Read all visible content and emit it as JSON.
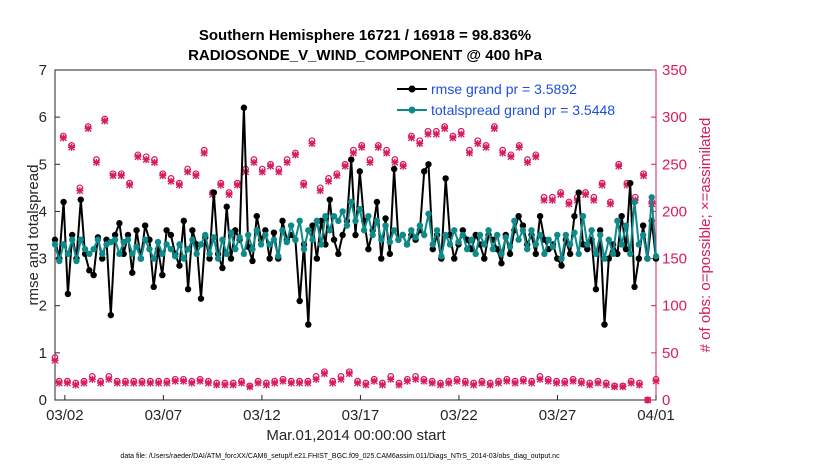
{
  "chart_data": {
    "type": "line",
    "title_line1": "Southern Hemisphere 16721 / 16918 = 98.836%",
    "title_line2": "RADIOSONDE_V_WIND_COMPONENT @ 400 hPa",
    "xlabel": "Mar.01,2014 00:00:00 start",
    "ylabel_left": "rmse and totalspread",
    "ylabel_right": "# of obs: o=possible; ×=assimilated",
    "footer": "data file: /Users/raeder/DAI/ATM_forcXX/CAM6_setup/f.e21.FHIST_BGC.f09_025.CAM6assim.011/Diags_NTrS_2014-03/obs_diag_output.nc",
    "xlim": [
      1.5,
      32.0
    ],
    "ylim_left": [
      0,
      7
    ],
    "ylim_right": [
      0,
      350
    ],
    "yticks_left": [
      "0",
      "1",
      "2",
      "3",
      "4",
      "5",
      "6",
      "7"
    ],
    "yticks_right": [
      "0",
      "50",
      "100",
      "150",
      "200",
      "250",
      "300",
      "350"
    ],
    "xticks": [
      {
        "x": 2,
        "label": "03/02"
      },
      {
        "x": 7,
        "label": "03/07"
      },
      {
        "x": 12,
        "label": "03/12"
      },
      {
        "x": 17,
        "label": "03/17"
      },
      {
        "x": 22,
        "label": "03/22"
      },
      {
        "x": 27,
        "label": "03/27"
      },
      {
        "x": 32,
        "label": "04/01"
      }
    ],
    "colors": {
      "rmse": "#000000",
      "spread": "#0f8a8a",
      "obs": "#d81b60",
      "legend_text": "#1f4fd8"
    },
    "series": [
      {
        "name": "rmse grand pr = 3.5892",
        "values": [
          3.4,
          3.0,
          4.2,
          2.25,
          3.5,
          3.0,
          4.25,
          3.1,
          2.75,
          2.65,
          3.45,
          3.0,
          3.4,
          1.8,
          3.5,
          3.75,
          3.1,
          3.5,
          2.7,
          3.6,
          3.0,
          3.7,
          3.4,
          2.4,
          3.2,
          2.65,
          3.6,
          3.5,
          3.1,
          2.85,
          3.8,
          2.35,
          3.6,
          3.3,
          2.15,
          3.45,
          3.0,
          4.4,
          3.1,
          2.8,
          4.1,
          3.0,
          3.6,
          3.4,
          6.2,
          3.25,
          2.95,
          3.9,
          3.4,
          3.6,
          3.0,
          3.55,
          3.0,
          3.8,
          3.4,
          3.5,
          3.4,
          2.1,
          3.3,
          1.6,
          3.7,
          3.0,
          3.8,
          3.3,
          4.25,
          3.4,
          3.1,
          3.5,
          3.8,
          5.1,
          3.5,
          4.85,
          3.8,
          3.2,
          3.6,
          4.2,
          3.0,
          3.85,
          3.1,
          4.9,
          3.4,
          3.5,
          3.3,
          3.5,
          3.4,
          3.6,
          4.85,
          5.0,
          3.2,
          3.5,
          3.0,
          4.7,
          3.5,
          3.0,
          3.3,
          3.6,
          3.4,
          3.2,
          3.5,
          3.3,
          3.0,
          3.5,
          3.4,
          3.2,
          2.9,
          3.5,
          3.1,
          3.6,
          3.9,
          3.7,
          3.3,
          3.5,
          3.1,
          3.9,
          3.4,
          3.2,
          3.3,
          3.0,
          2.85,
          3.4,
          3.1,
          3.9,
          4.4,
          3.3,
          3.2,
          3.4,
          2.35,
          3.6,
          1.6,
          3.0,
          3.3,
          3.1,
          3.9,
          3.2,
          4.6,
          2.4,
          3.0,
          3.7,
          3.0,
          3.8,
          3.0
        ]
      },
      {
        "name": "totalspread grand pr = 3.5448",
        "values": [
          3.3,
          2.95,
          3.3,
          3.1,
          3.4,
          2.95,
          3.4,
          3.2,
          3.1,
          3.2,
          3.4,
          3.1,
          3.3,
          3.35,
          3.4,
          3.1,
          3.35,
          3.4,
          3.1,
          3.25,
          3.0,
          3.4,
          3.2,
          3.0,
          3.35,
          3.1,
          3.3,
          3.2,
          3.05,
          3.3,
          3.0,
          3.2,
          3.4,
          3.1,
          3.3,
          3.5,
          3.1,
          3.45,
          3.0,
          3.4,
          3.1,
          3.55,
          3.2,
          3.45,
          3.1,
          3.5,
          3.2,
          3.6,
          3.3,
          3.5,
          3.3,
          3.4,
          3.05,
          3.6,
          3.35,
          3.7,
          3.4,
          3.8,
          3.2,
          3.6,
          3.4,
          3.8,
          3.3,
          3.9,
          3.6,
          3.9,
          3.8,
          4.0,
          3.7,
          4.2,
          3.8,
          4.05,
          3.6,
          3.9,
          3.5,
          3.8,
          3.4,
          3.7,
          3.35,
          3.6,
          3.4,
          3.5,
          3.3,
          3.6,
          3.45,
          3.7,
          3.5,
          3.95,
          3.3,
          3.6,
          3.05,
          3.5,
          3.3,
          3.6,
          3.35,
          3.5,
          3.2,
          3.4,
          3.1,
          3.5,
          3.3,
          3.6,
          3.2,
          3.5,
          3.1,
          3.45,
          3.25,
          3.8,
          3.4,
          3.6,
          3.2,
          3.6,
          3.3,
          3.5,
          3.1,
          3.4,
          3.25,
          3.5,
          3.0,
          3.5,
          3.3,
          3.55,
          3.1,
          3.9,
          3.3,
          3.6,
          3.1,
          3.5,
          3.0,
          3.4,
          3.1,
          3.8,
          3.3,
          3.7,
          3.1,
          4.2,
          3.3,
          3.5,
          3.0,
          4.3,
          3.05
        ]
      },
      {
        "name": "obs_possible",
        "values": [
          45,
          20,
          280,
          20,
          270,
          18,
          225,
          20,
          290,
          25,
          255,
          20,
          298,
          25,
          240,
          20,
          240,
          20,
          230,
          20,
          260,
          20,
          258,
          20,
          255,
          20,
          240,
          20,
          235,
          22,
          230,
          22,
          245,
          20,
          240,
          22,
          265,
          20,
          220,
          18,
          230,
          18,
          220,
          18,
          230,
          20,
          245,
          15,
          255,
          20,
          245,
          18,
          250,
          20,
          245,
          22,
          255,
          20,
          262,
          20,
          230,
          20,
          275,
          25,
          225,
          30,
          235,
          20,
          240,
          25,
          250,
          30,
          265,
          20,
          270,
          18,
          255,
          22,
          270,
          18,
          265,
          25,
          255,
          18,
          250,
          22,
          280,
          25,
          275,
          22,
          285,
          20,
          285,
          18,
          290,
          20,
          280,
          22,
          285,
          20,
          265,
          18,
          275,
          20,
          270,
          18,
          290,
          20,
          265,
          22,
          260,
          20,
          270,
          22,
          255,
          20,
          260,
          25,
          215,
          22,
          215,
          20,
          220,
          20,
          210,
          22,
          215,
          20,
          220,
          18,
          215,
          20,
          230,
          18,
          210,
          15,
          250,
          15,
          230,
          20,
          215,
          18,
          240,
          0,
          210,
          22
        ]
      },
      {
        "name": "obs_assimilated",
        "values": [
          42,
          18,
          278,
          18,
          268,
          16,
          222,
          18,
          288,
          22,
          252,
          18,
          296,
          22,
          238,
          18,
          238,
          18,
          228,
          18,
          258,
          18,
          255,
          18,
          252,
          18,
          238,
          18,
          232,
          20,
          228,
          20,
          242,
          18,
          238,
          20,
          262,
          18,
          218,
          16,
          228,
          16,
          218,
          16,
          228,
          18,
          242,
          14,
          252,
          18,
          242,
          16,
          248,
          18,
          242,
          20,
          252,
          18,
          260,
          18,
          228,
          18,
          272,
          22,
          222,
          28,
          232,
          18,
          238,
          22,
          248,
          28,
          262,
          18,
          268,
          16,
          252,
          20,
          268,
          16,
          262,
          22,
          252,
          16,
          248,
          20,
          278,
          22,
          272,
          20,
          282,
          18,
          282,
          16,
          288,
          18,
          278,
          20,
          282,
          18,
          262,
          16,
          272,
          18,
          268,
          16,
          288,
          18,
          262,
          20,
          258,
          18,
          268,
          20,
          252,
          18,
          258,
          22,
          212,
          20,
          212,
          18,
          218,
          18,
          208,
          20,
          212,
          18,
          218,
          16,
          212,
          18,
          228,
          16,
          208,
          14,
          248,
          14,
          228,
          18,
          212,
          16,
          238,
          0,
          208,
          20
        ]
      }
    ],
    "legend": [
      "rmse grand pr = 3.5892",
      "totalspread grand pr = 3.5448"
    ]
  }
}
